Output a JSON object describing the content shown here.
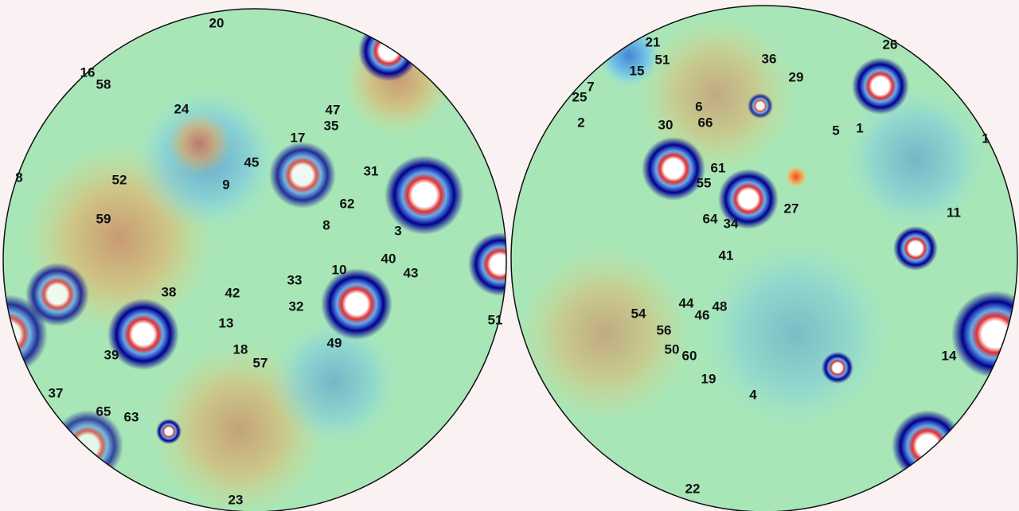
{
  "left_disc": {
    "labels": [
      "20",
      "16",
      "58",
      "24",
      "47",
      "35",
      "17",
      "45",
      "31",
      "8",
      "52",
      "9",
      "62",
      "59",
      "8",
      "3",
      "40",
      "43",
      "10",
      "33",
      "38",
      "42",
      "32",
      "13",
      "51",
      "18",
      "39",
      "49",
      "57",
      "37",
      "65",
      "63",
      "23"
    ]
  },
  "right_disc": {
    "labels": [
      "21",
      "51",
      "15",
      "36",
      "29",
      "26",
      "7",
      "25",
      "6",
      "2",
      "30",
      "66",
      "5",
      "1",
      "1",
      "61",
      "55",
      "27",
      "11",
      "64",
      "34",
      "41",
      "54",
      "44",
      "48",
      "46",
      "56",
      "50",
      "60",
      "14",
      "19",
      "4",
      "22"
    ]
  }
}
